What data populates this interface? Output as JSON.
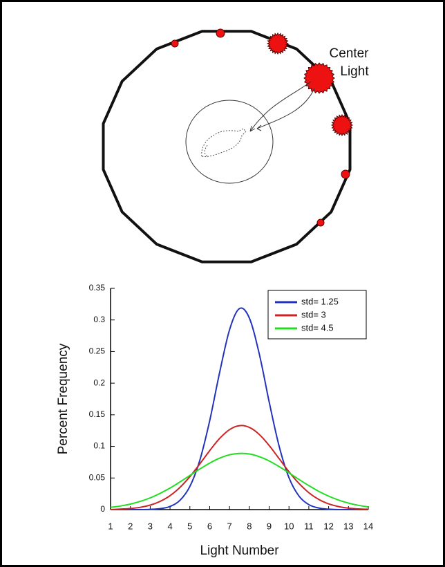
{
  "diagram": {
    "label_lines": [
      "Center",
      "Light"
    ]
  },
  "chart_data": {
    "type": "line",
    "xlabel": "Light Number",
    "ylabel": "Percent Frequency",
    "x": [
      1,
      1.5,
      2,
      2.5,
      3,
      3.5,
      4,
      4.5,
      5,
      5.5,
      6,
      6.5,
      7,
      7.5,
      8,
      8.5,
      9,
      9.5,
      10,
      10.5,
      11,
      11.5,
      12,
      12.5,
      13,
      13.5,
      14
    ],
    "series": [
      {
        "name": "std= 1.25",
        "color": "#2233bb",
        "values": [
          0,
          0,
          0,
          0,
          0.0004,
          0.0015,
          0.005,
          0.0147,
          0.0367,
          0.0778,
          0.1407,
          0.2167,
          0.2844,
          0.318,
          0.3032,
          0.2463,
          0.1705,
          0.1005,
          0.0505,
          0.0216,
          0.0079,
          0.0025,
          0.0007,
          0,
          0,
          0,
          0
        ]
      },
      {
        "name": "std= 3",
        "color": "#cc2222",
        "values": [
          0,
          0.0008,
          0.0017,
          0.0036,
          0.0071,
          0.013,
          0.0221,
          0.0351,
          0.0522,
          0.0722,
          0.0933,
          0.1125,
          0.1265,
          0.1328,
          0.1301,
          0.1189,
          0.1014,
          0.0807,
          0.0599,
          0.0415,
          0.0268,
          0.0162,
          0.0091,
          0.0048,
          0.0023,
          0.0011,
          0.0005
        ]
      },
      {
        "name": "std= 4.5",
        "color": "#22dd22",
        "values": [
          0.0036,
          0.0057,
          0.0087,
          0.013,
          0.0186,
          0.0257,
          0.0341,
          0.0437,
          0.054,
          0.0642,
          0.0736,
          0.0814,
          0.0867,
          0.0889,
          0.088,
          0.0838,
          0.077,
          0.0681,
          0.0581,
          0.0478,
          0.0379,
          0.0289,
          0.0213,
          0.0151,
          0.0103,
          0.0068,
          0.0043
        ]
      }
    ],
    "xlim": [
      1,
      14
    ],
    "xticks": [
      1,
      2,
      3,
      4,
      5,
      6,
      7,
      8,
      9,
      10,
      11,
      12,
      13,
      14
    ],
    "ylim": [
      0,
      0.35
    ],
    "yticks": [
      0,
      0.05,
      0.1,
      0.15,
      0.2,
      0.25,
      0.3,
      0.35
    ],
    "legend": "upper right"
  }
}
